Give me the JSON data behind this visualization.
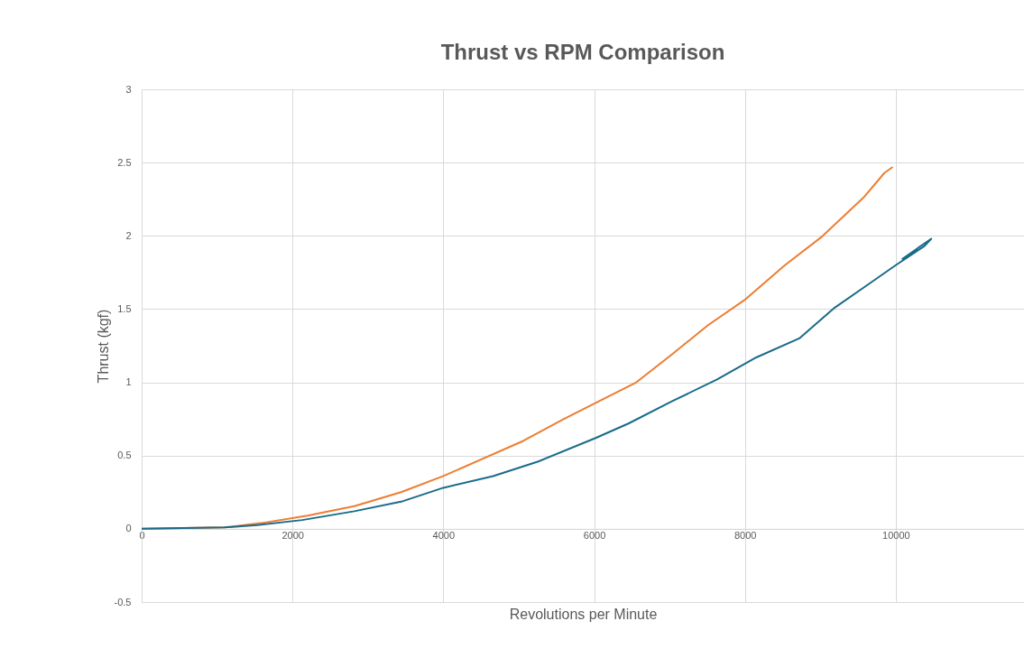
{
  "chart_data": {
    "type": "line",
    "title": "Thrust vs RPM Comparison",
    "xlabel": "Revolutions per Minute",
    "ylabel": "Thrust (kgf)",
    "xlim": [
      0,
      11700
    ],
    "xticks": [
      0,
      2000,
      4000,
      6000,
      8000,
      10000
    ],
    "ylim": [
      -0.5,
      3
    ],
    "yticks": [
      -0.5,
      0,
      0.5,
      1,
      1.5,
      2,
      2.5,
      3
    ],
    "grid": true,
    "series": [
      {
        "color": "#ed7d31",
        "x": [
          0,
          1100,
          1600,
          2200,
          2820,
          3440,
          4000,
          5060,
          5600,
          6020,
          6560,
          7030,
          7510,
          7990,
          8530,
          9010,
          9570,
          9850,
          9960
        ],
        "values": [
          0,
          0.01,
          0.04,
          0.09,
          0.155,
          0.25,
          0.36,
          0.6,
          0.75,
          0.86,
          1.0,
          1.19,
          1.39,
          1.56,
          1.8,
          1.99,
          2.26,
          2.43,
          2.47
        ]
      },
      {
        "color": "#196b8a",
        "x": [
          0,
          1100,
          1530,
          2130,
          2820,
          3440,
          4000,
          4660,
          5260,
          6020,
          6460,
          7030,
          7630,
          8150,
          8720,
          9190,
          9610,
          10000,
          10380,
          10470,
          10080
        ],
        "values": [
          0,
          0.01,
          0.025,
          0.06,
          0.12,
          0.185,
          0.28,
          0.36,
          0.46,
          0.62,
          0.72,
          0.87,
          1.02,
          1.17,
          1.3,
          1.51,
          1.66,
          1.8,
          1.93,
          1.98,
          1.84
        ]
      }
    ]
  }
}
